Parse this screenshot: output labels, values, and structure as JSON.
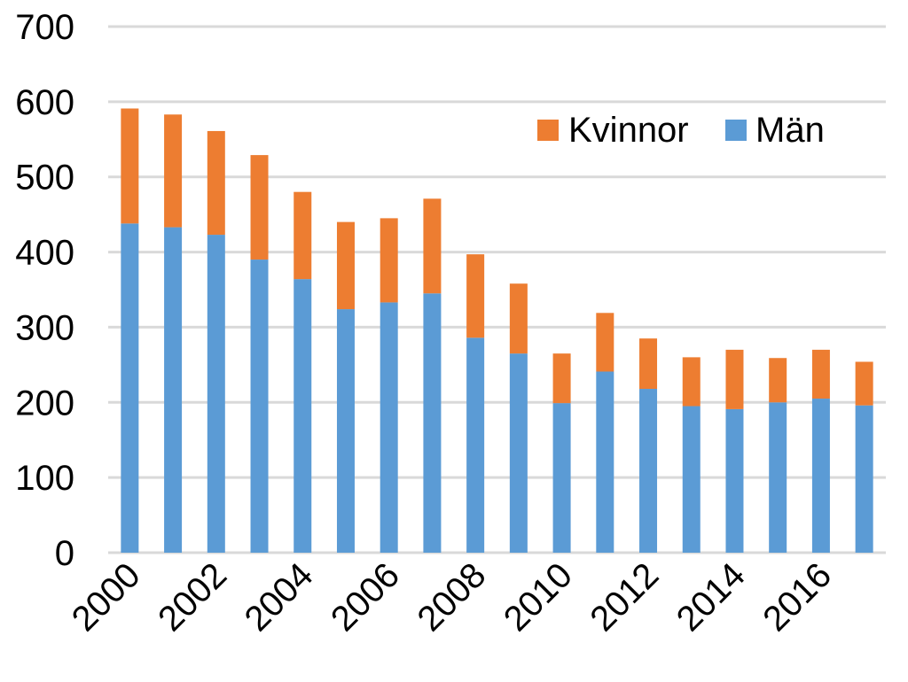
{
  "chart_data": {
    "type": "bar",
    "stacked": true,
    "title": "",
    "xlabel": "",
    "ylabel": "",
    "ylim": [
      0,
      700
    ],
    "yticks": [
      0,
      100,
      200,
      300,
      400,
      500,
      600,
      700
    ],
    "grid": true,
    "legend_position": "top-right",
    "categories": [
      "2000",
      "2001",
      "2002",
      "2003",
      "2004",
      "2005",
      "2006",
      "2007",
      "2008",
      "2009",
      "2010",
      "2011",
      "2012",
      "2013",
      "2014",
      "2015",
      "2016",
      "2017"
    ],
    "xtick_labels": [
      "2000",
      "",
      "2002",
      "",
      "2004",
      "",
      "2006",
      "",
      "2008",
      "",
      "2010",
      "",
      "2012",
      "",
      "2014",
      "",
      "2016",
      ""
    ],
    "series": [
      {
        "name": "Män",
        "color": "#5b9bd5",
        "values": [
          438,
          433,
          423,
          390,
          364,
          324,
          333,
          345,
          286,
          265,
          199,
          241,
          218,
          195,
          191,
          200,
          205,
          196
        ]
      },
      {
        "name": "Kvinnor",
        "color": "#ed7d31",
        "values": [
          153,
          150,
          138,
          139,
          116,
          116,
          112,
          126,
          111,
          93,
          66,
          78,
          67,
          65,
          79,
          59,
          65,
          58
        ]
      }
    ],
    "legend_order": [
      "Kvinnor",
      "Män"
    ]
  }
}
